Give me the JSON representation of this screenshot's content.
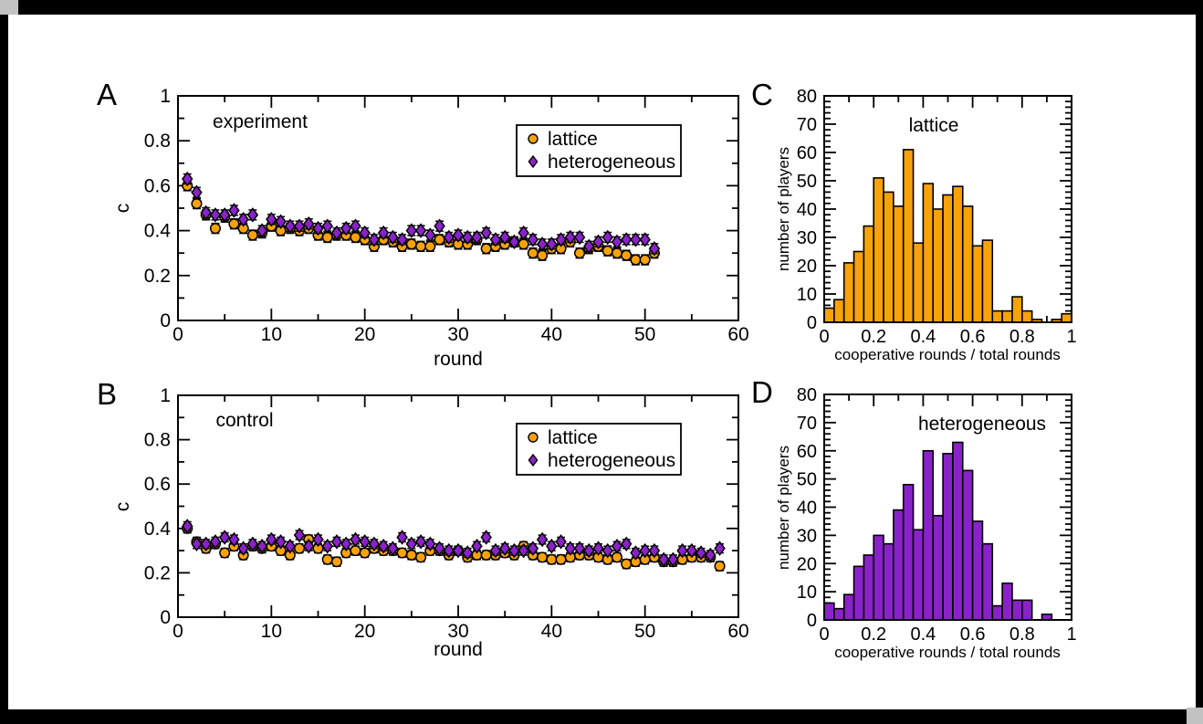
{
  "window": {
    "background_color": "#c2c2c2",
    "frame_color": "#000000",
    "canvas_color": "#ffffff"
  },
  "colors": {
    "lattice": "#F7A208",
    "heterogeneous": "#8A22C9",
    "axis": "#000000"
  },
  "figure": {
    "panel_labels": {
      "a": "A",
      "b": "B",
      "c": "C",
      "d": "D"
    }
  },
  "chart_data": [
    {
      "id": "A",
      "type": "scatter",
      "title": "experiment",
      "xlabel": "round",
      "ylabel": "c",
      "xlim": [
        0,
        60
      ],
      "ylim": [
        0,
        1
      ],
      "xticks_major": [
        0,
        10,
        20,
        30,
        40,
        50,
        60
      ],
      "xtick_labels": [
        "0",
        "10",
        "20",
        "30",
        "40",
        "50",
        "60"
      ],
      "xtick_minor_step": 5,
      "yticks_major": [
        0,
        0.2,
        0.4,
        0.6,
        0.8,
        1
      ],
      "ytick_labels": [
        "0",
        "0.2",
        "0.4",
        "0.6",
        "0.8",
        "1"
      ],
      "ytick_minor_step": 0.1,
      "grid": false,
      "legend_position": "upper right",
      "legend": [
        {
          "label": "lattice",
          "marker": "circle",
          "color": "lattice"
        },
        {
          "label": "heterogeneous",
          "marker": "diamond",
          "color": "heterogeneous"
        }
      ],
      "error": 0.022,
      "x_start": 1,
      "series": [
        {
          "name": "lattice",
          "marker": "circle",
          "color": "lattice",
          "values": [
            0.6,
            0.52,
            0.47,
            0.41,
            0.46,
            0.43,
            0.41,
            0.38,
            0.39,
            0.42,
            0.4,
            0.41,
            0.4,
            0.41,
            0.38,
            0.37,
            0.38,
            0.38,
            0.37,
            0.36,
            0.33,
            0.36,
            0.35,
            0.33,
            0.34,
            0.33,
            0.33,
            0.36,
            0.35,
            0.34,
            0.34,
            0.36,
            0.32,
            0.33,
            0.34,
            0.35,
            0.34,
            0.3,
            0.29,
            0.32,
            0.32,
            0.35,
            0.3,
            0.32,
            0.33,
            0.31,
            0.3,
            0.29,
            0.27,
            0.27,
            0.3
          ]
        },
        {
          "name": "heterogeneous",
          "marker": "diamond",
          "color": "heterogeneous",
          "values": [
            0.63,
            0.57,
            0.48,
            0.47,
            0.47,
            0.49,
            0.45,
            0.47,
            0.4,
            0.45,
            0.44,
            0.42,
            0.42,
            0.43,
            0.41,
            0.42,
            0.39,
            0.41,
            0.42,
            0.39,
            0.36,
            0.39,
            0.37,
            0.36,
            0.4,
            0.4,
            0.38,
            0.42,
            0.37,
            0.38,
            0.37,
            0.37,
            0.39,
            0.36,
            0.37,
            0.35,
            0.39,
            0.36,
            0.34,
            0.34,
            0.36,
            0.37,
            0.37,
            0.33,
            0.35,
            0.37,
            0.35,
            0.36,
            0.36,
            0.36,
            0.32
          ]
        }
      ]
    },
    {
      "id": "B",
      "type": "scatter",
      "title": "control",
      "xlabel": "round",
      "ylabel": "c",
      "xlim": [
        0,
        60
      ],
      "ylim": [
        0,
        1
      ],
      "xticks_major": [
        0,
        10,
        20,
        30,
        40,
        50,
        60
      ],
      "xtick_labels": [
        "0",
        "10",
        "20",
        "30",
        "40",
        "50",
        "60"
      ],
      "xtick_minor_step": 5,
      "yticks_major": [
        0,
        0.2,
        0.4,
        0.6,
        0.8,
        1
      ],
      "ytick_labels": [
        "0",
        "0.2",
        "0.4",
        "0.6",
        "0.8",
        "1"
      ],
      "ytick_minor_step": 0.1,
      "grid": false,
      "legend_position": "upper right",
      "legend": [
        {
          "label": "lattice",
          "marker": "circle",
          "color": "lattice"
        },
        {
          "label": "heterogeneous",
          "marker": "diamond",
          "color": "heterogeneous"
        }
      ],
      "error": 0.02,
      "x_start": 1,
      "series": [
        {
          "name": "lattice",
          "marker": "circle",
          "color": "lattice",
          "values": [
            0.4,
            0.34,
            0.31,
            0.33,
            0.29,
            0.32,
            0.28,
            0.32,
            0.31,
            0.32,
            0.3,
            0.28,
            0.31,
            0.35,
            0.31,
            0.26,
            0.25,
            0.29,
            0.3,
            0.29,
            0.31,
            0.3,
            0.3,
            0.29,
            0.28,
            0.27,
            0.3,
            0.3,
            0.28,
            0.3,
            0.27,
            0.28,
            0.28,
            0.28,
            0.29,
            0.28,
            0.32,
            0.28,
            0.27,
            0.26,
            0.26,
            0.27,
            0.28,
            0.28,
            0.27,
            0.26,
            0.27,
            0.24,
            0.25,
            0.26,
            0.27,
            0.25,
            0.25,
            0.26,
            0.27,
            0.27,
            0.27,
            0.23
          ]
        },
        {
          "name": "heterogeneous",
          "marker": "diamond",
          "color": "heterogeneous",
          "values": [
            0.41,
            0.33,
            0.33,
            0.34,
            0.36,
            0.35,
            0.31,
            0.33,
            0.32,
            0.35,
            0.34,
            0.32,
            0.37,
            0.32,
            0.35,
            0.32,
            0.34,
            0.33,
            0.35,
            0.34,
            0.33,
            0.32,
            0.31,
            0.36,
            0.33,
            0.34,
            0.33,
            0.31,
            0.3,
            0.3,
            0.29,
            0.32,
            0.36,
            0.3,
            0.31,
            0.3,
            0.3,
            0.31,
            0.35,
            0.32,
            0.34,
            0.31,
            0.31,
            0.3,
            0.31,
            0.3,
            0.32,
            0.33,
            0.29,
            0.3,
            0.3,
            0.26,
            0.26,
            0.3,
            0.3,
            0.29,
            0.28,
            0.31
          ]
        }
      ]
    },
    {
      "id": "C",
      "type": "histogram",
      "title": "lattice",
      "xlabel": "cooperative rounds / total rounds",
      "ylabel": "number of players",
      "xlim": [
        0,
        1
      ],
      "ylim": [
        0,
        80
      ],
      "xticks_major": [
        0,
        0.2,
        0.4,
        0.6,
        0.8,
        1
      ],
      "xtick_labels": [
        "0",
        "0.2",
        "0.4",
        "0.6",
        "0.8",
        "1"
      ],
      "xtick_minor_step": 0.1,
      "yticks_major": [
        0,
        10,
        20,
        30,
        40,
        50,
        60,
        70,
        80
      ],
      "ytick_labels": [
        "0",
        "10",
        "20",
        "30",
        "40",
        "50",
        "60",
        "70",
        "80"
      ],
      "ytick_minor_step": 2,
      "grid": false,
      "color": "lattice",
      "bin_width": 0.04,
      "bin_start": 0,
      "values": [
        5,
        8,
        21,
        25,
        34,
        51,
        46,
        41,
        61,
        28,
        49,
        40,
        45,
        48,
        41,
        27,
        29,
        4,
        4,
        9,
        4,
        1,
        0,
        1,
        3
      ]
    },
    {
      "id": "D",
      "type": "histogram",
      "title": "heterogeneous",
      "xlabel": "cooperative rounds / total rounds",
      "ylabel": "number of players",
      "xlim": [
        0,
        1
      ],
      "ylim": [
        0,
        80
      ],
      "xticks_major": [
        0,
        0.2,
        0.4,
        0.6,
        0.8,
        1
      ],
      "xtick_labels": [
        "0",
        "0.2",
        "0.4",
        "0.6",
        "0.8",
        "1"
      ],
      "xtick_minor_step": 0.1,
      "yticks_major": [
        0,
        10,
        20,
        30,
        40,
        50,
        60,
        70,
        80
      ],
      "ytick_labels": [
        "0",
        "10",
        "20",
        "30",
        "40",
        "50",
        "60",
        "70",
        "80"
      ],
      "ytick_minor_step": 2,
      "grid": false,
      "color": "heterogeneous",
      "bin_width": 0.04,
      "bin_start": 0,
      "values": [
        6,
        4,
        9,
        19,
        23,
        30,
        27,
        39,
        48,
        32,
        60,
        37,
        59,
        63,
        53,
        35,
        27,
        5,
        13,
        7,
        7,
        0,
        2,
        0,
        0
      ]
    }
  ]
}
